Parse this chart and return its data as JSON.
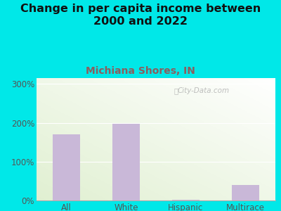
{
  "title": "Change in per capita income between\n2000 and 2022",
  "subtitle": "Michiana Shores, IN",
  "categories": [
    "All",
    "White",
    "Hispanic",
    "Multirace"
  ],
  "values": [
    170,
    197,
    2,
    40
  ],
  "bar_color": "#c9b8d8",
  "title_fontsize": 11.5,
  "subtitle_fontsize": 10,
  "outer_bg": "#00e8e8",
  "yticks": [
    0,
    100,
    200,
    300
  ],
  "ylim": [
    0,
    315
  ],
  "watermark": "City-Data.com",
  "tick_color": "#555555",
  "grid_color": "#ffffff",
  "subtitle_color": "#7a5c5c"
}
